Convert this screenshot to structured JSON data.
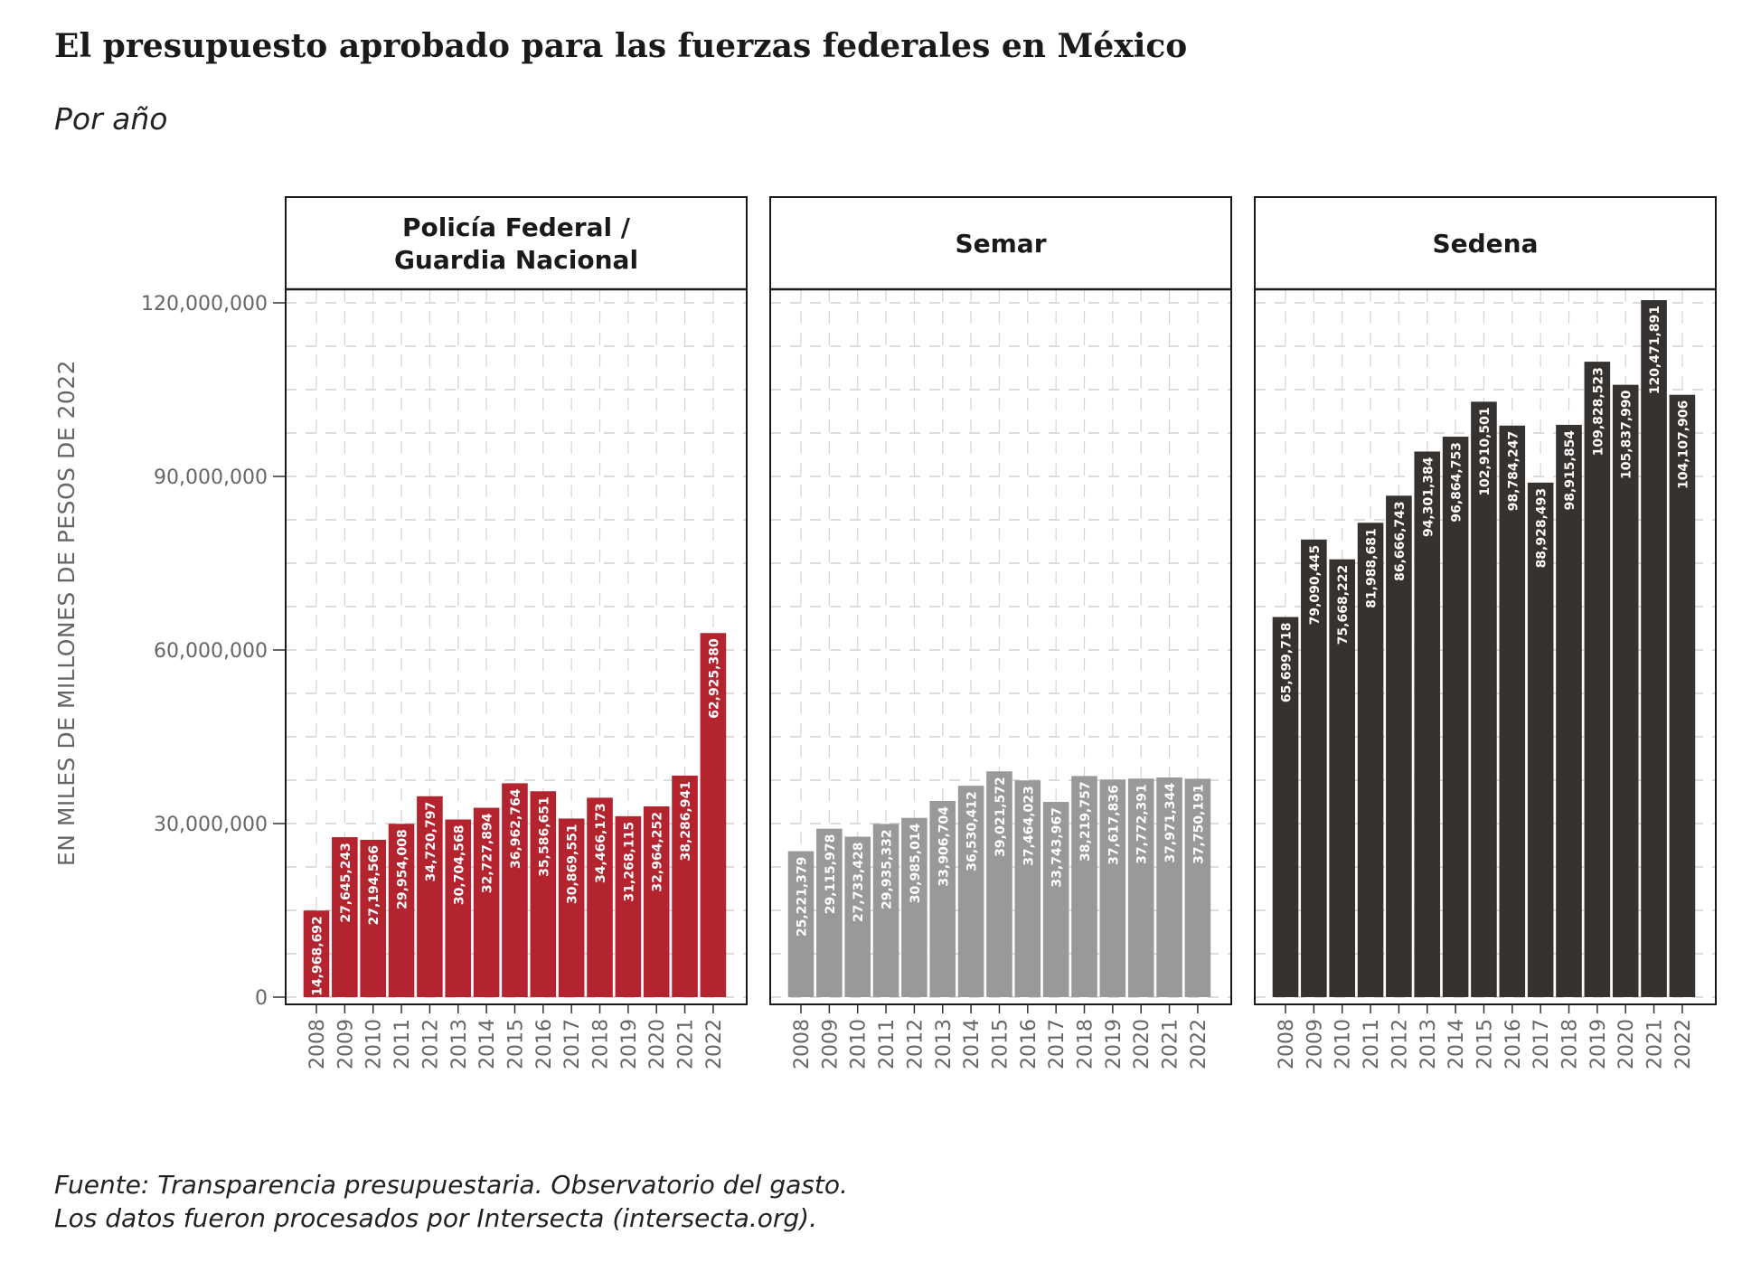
{
  "title": "El presupuesto aprobado para las fuerzas federales en México",
  "subtitle": "Por año",
  "caption": {
    "line1": "Fuente: Transparencia presupuestaria. Observatorio del gasto.",
    "line2": "Los datos fueron procesados por Intersecta (intersecta.org)."
  },
  "chart_data": {
    "type": "bar",
    "ylabel": "EN MILES DE MILLONES DE PESOS DE 2022",
    "ylim": [
      0,
      125000000
    ],
    "yticks": [
      0,
      30000000,
      60000000,
      90000000,
      120000000
    ],
    "ytick_labels": [
      "0",
      "30,000,000",
      "60,000,000",
      "90,000,000",
      "120,000,000"
    ],
    "categories": [
      "2008",
      "2009",
      "2010",
      "2011",
      "2012",
      "2013",
      "2014",
      "2015",
      "2016",
      "2017",
      "2018",
      "2019",
      "2020",
      "2021",
      "2022"
    ],
    "grid": true,
    "series": [
      {
        "name": "Policía Federal / Guardia Nacional",
        "title_lines": [
          "Policía Federal /",
          "Guardia Nacional"
        ],
        "color": "#b3242f",
        "values": [
          14968692,
          27645243,
          27194566,
          29954008,
          34720797,
          30704568,
          32727894,
          36962764,
          35586651,
          30869551,
          34466173,
          31268115,
          32964252,
          38286941,
          62925380
        ],
        "labels": [
          "14,968,692",
          "27,645,243",
          "27,194,566",
          "29,954,008",
          "34,720,797",
          "30,704,568",
          "32,727,894",
          "36,962,764",
          "35,586,651",
          "30,869,551",
          "34,466,173",
          "31,268,115",
          "32,964,252",
          "38,286,941",
          "62,925,380"
        ]
      },
      {
        "name": "Semar",
        "title_lines": [
          "Semar"
        ],
        "color": "#999999",
        "values": [
          25221379,
          29115978,
          27733428,
          29935332,
          30985014,
          33906704,
          36530412,
          39021572,
          37464023,
          33743967,
          38219757,
          37617836,
          37772391,
          37971344,
          37750191
        ],
        "labels": [
          "25,221,379",
          "29,115,978",
          "27,733,428",
          "29,935,332",
          "30,985,014",
          "33,906,704",
          "36,530,412",
          "39,021,572",
          "37,464,023",
          "33,743,967",
          "38,219,757",
          "37,617,836",
          "37,772,391",
          "37,971,344",
          "37,750,191"
        ]
      },
      {
        "name": "Sedena",
        "title_lines": [
          "Sedena"
        ],
        "color": "#363230",
        "values": [
          65699718,
          79090445,
          75668222,
          81988681,
          86666743,
          94301384,
          96864753,
          102910501,
          98784247,
          88928493,
          98915854,
          109828523,
          105837990,
          120471891,
          104107906
        ],
        "labels": [
          "65,699,718",
          "79,090,445",
          "75,668,222",
          "81,988,681",
          "86,666,743",
          "94,301,384",
          "96,864,753",
          "102,910,501",
          "98,784,247",
          "88,928,493",
          "98,915,854",
          "109,828,523",
          "105,837,990",
          "120,471,891",
          "104,107,906"
        ]
      }
    ]
  }
}
